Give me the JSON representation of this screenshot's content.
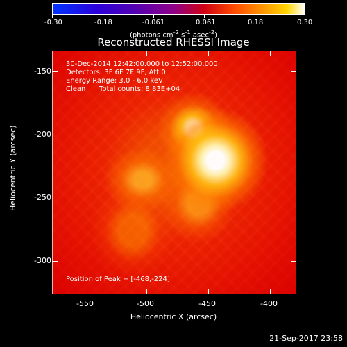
{
  "colorbar": {
    "ticks": [
      "-0.30",
      "-0.18",
      "-0.061",
      "0.061",
      "0.18",
      "0.30"
    ],
    "units_base": "(photons cm",
    "units_exp1": "-2",
    "units_mid1": " s",
    "units_exp2": "-1",
    "units_mid2": " asec",
    "units_exp3": "-2",
    "units_end": ")"
  },
  "image": {
    "title": "Reconstructed RHESSI Image",
    "timerange": "30-Dec-2014 12:42:00.000 to 12:52:00.000",
    "detectors": "Detectors: 3F 6F 7F 9F, Att 0",
    "energy_range": "Energy Range: 3.0 - 6.0 keV",
    "clean_label": "Clean",
    "total_counts": "Total counts: 8.83E+04",
    "peak_position": "Position of Peak = [-468,-224]"
  },
  "axes": {
    "x_label": "Heliocentric X (arcsec)",
    "y_label": "Heliocentric Y (arcsec)",
    "x_ticks": [
      "-550",
      "-500",
      "-450",
      "-400"
    ],
    "y_ticks": [
      "-150",
      "-200",
      "-250",
      "-300"
    ]
  },
  "footer": {
    "timestamp": "21-Sep-2017 23:58"
  }
}
